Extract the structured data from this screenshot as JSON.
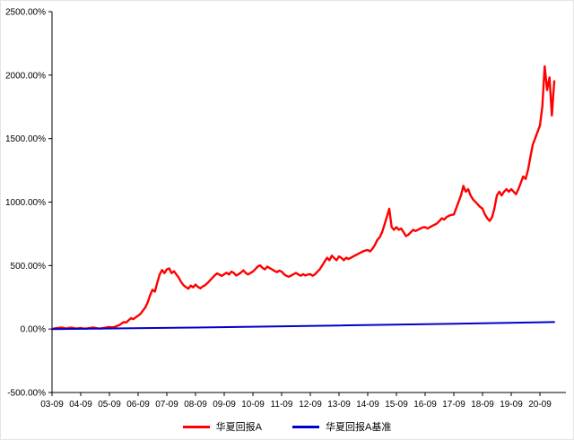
{
  "chart_data": {
    "type": "line",
    "title": "",
    "xlabel": "",
    "ylabel": "",
    "grid": false,
    "legend_position": "bottom",
    "ylim": [
      -500,
      2500
    ],
    "y_ticks": [
      {
        "value": 2500,
        "label": "2500.00%"
      },
      {
        "value": 2000,
        "label": "2000.00%"
      },
      {
        "value": 1500,
        "label": "1500.00%"
      },
      {
        "value": 1000,
        "label": "1000.00%"
      },
      {
        "value": 500,
        "label": "500.00%"
      },
      {
        "value": 0,
        "label": "0.00%"
      },
      {
        "value": -500,
        "label": "-500.00%"
      }
    ],
    "x_unit": "months since 2003-09",
    "x_ticks": [
      {
        "pos": 0,
        "label": "03-09"
      },
      {
        "pos": 12,
        "label": "04-09"
      },
      {
        "pos": 24,
        "label": "05-09"
      },
      {
        "pos": 36,
        "label": "06-09"
      },
      {
        "pos": 48,
        "label": "07-09"
      },
      {
        "pos": 60,
        "label": "08-09"
      },
      {
        "pos": 72,
        "label": "09-09"
      },
      {
        "pos": 84,
        "label": "10-09"
      },
      {
        "pos": 96,
        "label": "11-09"
      },
      {
        "pos": 108,
        "label": "12-09"
      },
      {
        "pos": 120,
        "label": "13-09"
      },
      {
        "pos": 132,
        "label": "14-09"
      },
      {
        "pos": 144,
        "label": "15-09"
      },
      {
        "pos": 156,
        "label": "16-09"
      },
      {
        "pos": 168,
        "label": "17-09"
      },
      {
        "pos": 180,
        "label": "18-09"
      },
      {
        "pos": 192,
        "label": "19-09"
      },
      {
        "pos": 204,
        "label": "20-09"
      }
    ],
    "series": [
      {
        "name": "华夏回报A",
        "color": "#FF0000",
        "x_step": 1,
        "values": [
          0,
          4,
          8,
          10,
          12,
          8,
          5,
          9,
          12,
          8,
          5,
          6,
          8,
          5,
          3,
          6,
          9,
          12,
          10,
          6,
          3,
          7,
          10,
          13,
          15,
          13,
          16,
          22,
          30,
          42,
          55,
          52,
          68,
          85,
          78,
          92,
          105,
          120,
          145,
          170,
          210,
          265,
          310,
          295,
          365,
          430,
          465,
          440,
          470,
          478,
          440,
          455,
          430,
          405,
          370,
          345,
          330,
          318,
          342,
          328,
          350,
          332,
          320,
          335,
          345,
          362,
          382,
          402,
          422,
          438,
          428,
          418,
          432,
          444,
          430,
          452,
          442,
          422,
          432,
          445,
          462,
          442,
          430,
          442,
          452,
          472,
          492,
          502,
          482,
          470,
          492,
          480,
          470,
          458,
          448,
          460,
          452,
          432,
          420,
          412,
          422,
          432,
          442,
          430,
          420,
          432,
          422,
          430,
          432,
          420,
          432,
          452,
          472,
          502,
          532,
          562,
          542,
          578,
          558,
          542,
          572,
          560,
          542,
          562,
          552,
          562,
          572,
          582,
          592,
          602,
          612,
          618,
          622,
          612,
          632,
          662,
          702,
          722,
          762,
          822,
          882,
          948,
          802,
          782,
          802,
          782,
          792,
          762,
          732,
          742,
          762,
          782,
          772,
          782,
          792,
          800,
          802,
          792,
          802,
          812,
          822,
          832,
          852,
          872,
          862,
          882,
          892,
          900,
          902,
          952,
          1002,
          1052,
          1128,
          1082,
          1102,
          1052,
          1022,
          1002,
          982,
          962,
          948,
          902,
          872,
          852,
          882,
          952,
          1052,
          1082,
          1052,
          1082,
          1102,
          1082,
          1102,
          1082,
          1062,
          1102,
          1152,
          1202,
          1182,
          1252,
          1352,
          1452,
          1502,
          1552,
          1602,
          1752,
          2070,
          1882,
          1982,
          1682,
          1952
        ]
      },
      {
        "name": "华夏回报A基准",
        "color": "#0000CC",
        "x": [
          0,
          60,
          120,
          180,
          210
        ],
        "values": [
          0,
          12,
          28,
          45,
          55
        ]
      }
    ]
  }
}
